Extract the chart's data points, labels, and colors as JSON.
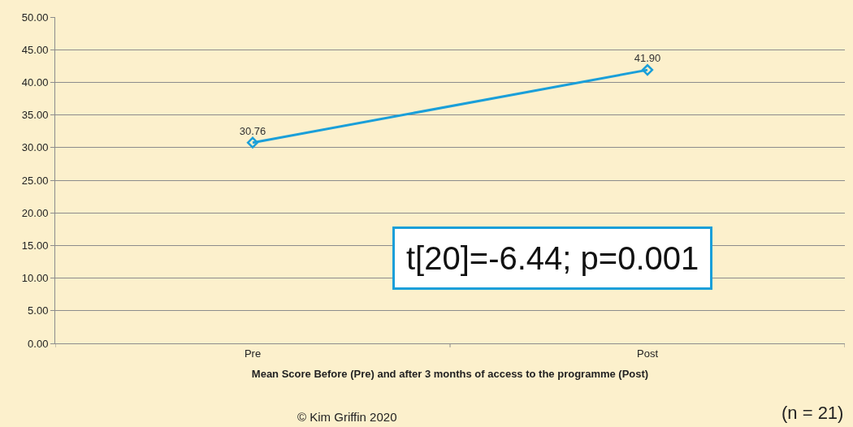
{
  "chart_data": {
    "type": "line",
    "xlabel": "Mean Score Before (Pre) and after 3 months of access to the programme (Post)",
    "categories": [
      "Pre",
      "Post"
    ],
    "series": [
      {
        "color": "#1a9fd9",
        "values": [
          30.76,
          41.9
        ],
        "value_labels": [
          "30.76",
          "41.90"
        ]
      }
    ],
    "ylim": [
      0,
      50
    ],
    "yticks": [
      {
        "value": 0,
        "label": "0.00"
      },
      {
        "value": 5,
        "label": "5.00"
      },
      {
        "value": 10,
        "label": "10.00"
      },
      {
        "value": 15,
        "label": "15.00"
      },
      {
        "value": 20,
        "label": "20.00"
      },
      {
        "value": 25,
        "label": "25.00"
      },
      {
        "value": 30,
        "label": "30.00"
      },
      {
        "value": 35,
        "label": "35.00"
      },
      {
        "value": 40,
        "label": "40.00"
      },
      {
        "value": 45,
        "label": "45.00"
      },
      {
        "value": 50,
        "label": "50.00"
      }
    ],
    "grid": "y",
    "marker": "diamond",
    "line_style": "solid",
    "legend": false,
    "annotations": [
      "t[20]=-6.44; p=0.001",
      "© Kim Griffin 2020",
      "(n = 21)"
    ]
  }
}
